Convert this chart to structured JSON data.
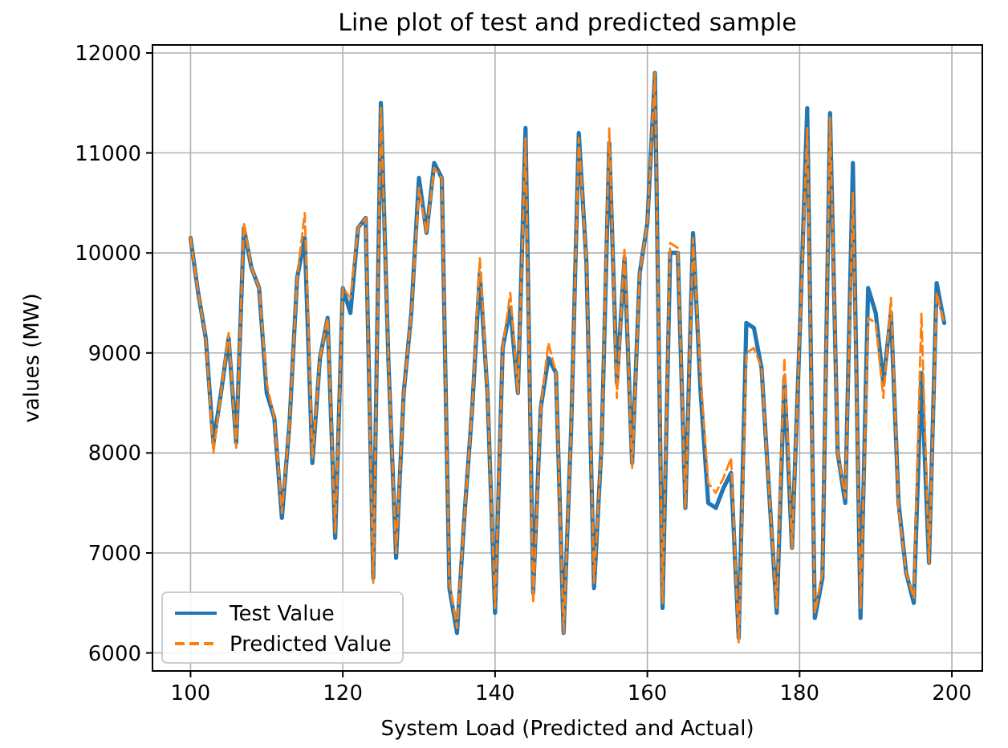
{
  "chart_data": {
    "type": "line",
    "title": "Line plot of test and predicted sample",
    "xlabel": "System Load (Predicted and Actual)",
    "ylabel": "values (MW)",
    "x": [
      100,
      101,
      102,
      103,
      104,
      105,
      106,
      107,
      108,
      109,
      110,
      111,
      112,
      113,
      114,
      115,
      116,
      117,
      118,
      119,
      120,
      121,
      122,
      123,
      124,
      125,
      126,
      127,
      128,
      129,
      130,
      131,
      132,
      133,
      134,
      135,
      136,
      137,
      138,
      139,
      140,
      141,
      142,
      143,
      144,
      145,
      146,
      147,
      148,
      149,
      150,
      151,
      152,
      153,
      154,
      155,
      156,
      157,
      158,
      159,
      160,
      161,
      162,
      163,
      164,
      165,
      166,
      167,
      168,
      169,
      170,
      171,
      172,
      173,
      174,
      175,
      176,
      177,
      178,
      179,
      180,
      181,
      182,
      183,
      184,
      185,
      186,
      187,
      188,
      189,
      190,
      191,
      192,
      193,
      194,
      195,
      196,
      197,
      198,
      199
    ],
    "series": [
      {
        "name": "Test Value",
        "color": "#1f77b4",
        "line_style": "solid",
        "values": [
          10150,
          9600,
          9150,
          8100,
          8600,
          9150,
          8100,
          10250,
          9850,
          9650,
          8600,
          8350,
          7350,
          8300,
          9750,
          10150,
          7900,
          8950,
          9350,
          7150,
          9650,
          9400,
          10250,
          10350,
          6750,
          11500,
          8900,
          6950,
          8600,
          9400,
          10750,
          10200,
          10900,
          10750,
          6650,
          6200,
          7400,
          8450,
          9800,
          8600,
          6400,
          9050,
          9450,
          8600,
          11250,
          6600,
          8450,
          8950,
          8800,
          6200,
          8250,
          11200,
          9900,
          6650,
          8100,
          11100,
          8700,
          9950,
          7900,
          9800,
          10300,
          11800,
          6450,
          10000,
          10000,
          7450,
          10200,
          8600,
          7500,
          7450,
          7650,
          7800,
          6150,
          9300,
          9250,
          8850,
          7600,
          6400,
          8750,
          7050,
          9150,
          11450,
          6350,
          6750,
          11400,
          8000,
          7500,
          10900,
          6350,
          9650,
          9400,
          8700,
          9400,
          7500,
          6800,
          6500,
          8800,
          6900,
          9700,
          9300
        ]
      },
      {
        "name": "Predicted Value",
        "color": "#ff7f0e",
        "line_style": "dashed",
        "values": [
          10150,
          9600,
          9150,
          8000,
          8600,
          9200,
          8050,
          10300,
          9850,
          9650,
          8700,
          8350,
          7400,
          8300,
          9750,
          10400,
          7950,
          8950,
          9350,
          7200,
          9650,
          9550,
          10250,
          10350,
          6700,
          11450,
          8900,
          7000,
          8600,
          9400,
          10650,
          10200,
          10850,
          10750,
          6700,
          6250,
          7400,
          8450,
          9950,
          8600,
          6450,
          9050,
          9600,
          8600,
          11150,
          6500,
          8450,
          9100,
          8800,
          6200,
          8250,
          11150,
          9900,
          6700,
          8100,
          11250,
          8550,
          10050,
          7850,
          9800,
          10300,
          11800,
          6500,
          10100,
          10050,
          7450,
          10150,
          8750,
          7700,
          7600,
          7750,
          7950,
          6100,
          9000,
          9050,
          8850,
          7600,
          6450,
          8950,
          7050,
          9150,
          11250,
          6400,
          6800,
          11350,
          8000,
          7550,
          10600,
          6450,
          9350,
          9300,
          8550,
          9550,
          7450,
          6800,
          6550,
          9400,
          6900,
          9600,
          9300
        ]
      }
    ],
    "xlim": [
      95,
      204
    ],
    "ylim": [
      5820,
      12080
    ],
    "xticks": [
      100,
      120,
      140,
      160,
      180,
      200
    ],
    "yticks": [
      6000,
      7000,
      8000,
      9000,
      10000,
      11000,
      12000
    ],
    "grid": true,
    "legend": "bottom left"
  }
}
